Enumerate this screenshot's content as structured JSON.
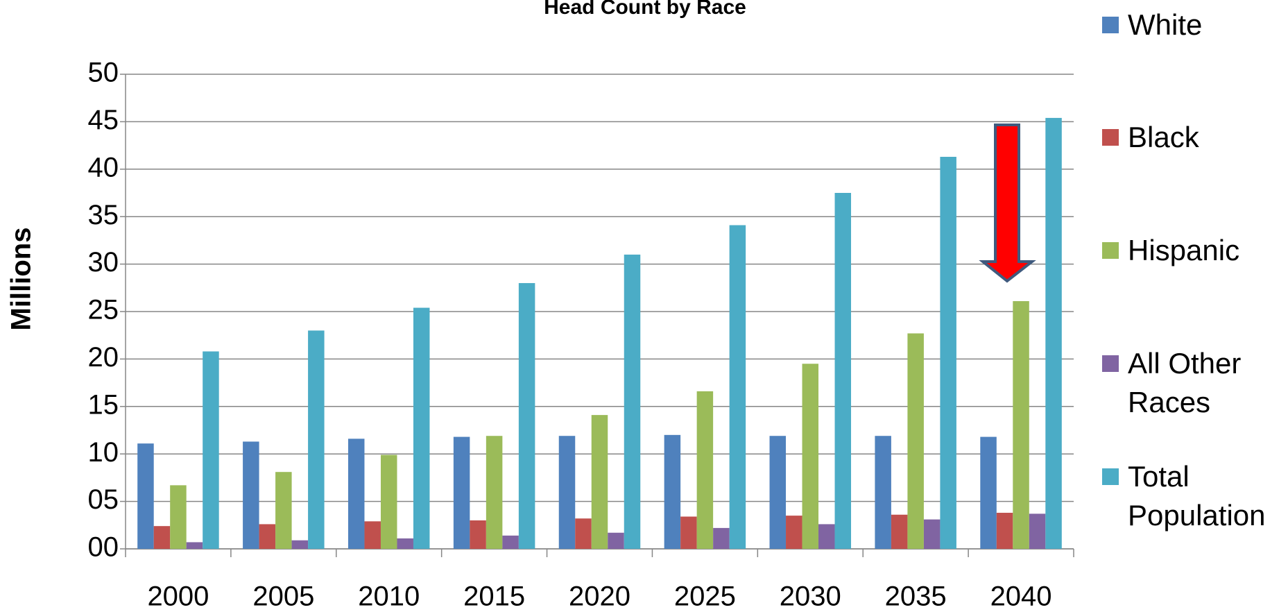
{
  "chart_data": {
    "type": "bar",
    "title": "Head Count by Race",
    "y_label": "Millions",
    "categories": [
      "2000",
      "2005",
      "2010",
      "2015",
      "2020",
      "2025",
      "2030",
      "2035",
      "2040"
    ],
    "series": [
      {
        "name": "White",
        "color": "#4f81bd",
        "values": [
          11.1,
          11.3,
          11.6,
          11.8,
          11.9,
          12.0,
          11.9,
          11.9,
          11.8
        ]
      },
      {
        "name": "Black",
        "color": "#c0504d",
        "values": [
          2.4,
          2.6,
          2.9,
          3.0,
          3.2,
          3.4,
          3.5,
          3.6,
          3.8
        ]
      },
      {
        "name": "Hispanic",
        "color": "#9bbb59",
        "values": [
          6.7,
          8.1,
          9.9,
          11.9,
          14.1,
          16.6,
          19.5,
          22.7,
          26.1
        ]
      },
      {
        "name": "All Other Races",
        "color": "#8064a2",
        "values": [
          0.7,
          0.9,
          1.1,
          1.4,
          1.7,
          2.2,
          2.6,
          3.1,
          3.7
        ]
      },
      {
        "name": "Total Population",
        "color": "#4bacc6",
        "values": [
          20.8,
          23.0,
          25.4,
          28.0,
          31.0,
          34.1,
          37.5,
          41.3,
          45.4
        ]
      }
    ],
    "ylim": [
      0,
      50
    ],
    "yticks": [
      {
        "value": 0,
        "label": "00"
      },
      {
        "value": 5,
        "label": "05"
      },
      10,
      15,
      20,
      25,
      30,
      35,
      40,
      45,
      50
    ],
    "grid": true,
    "legend": "right"
  }
}
